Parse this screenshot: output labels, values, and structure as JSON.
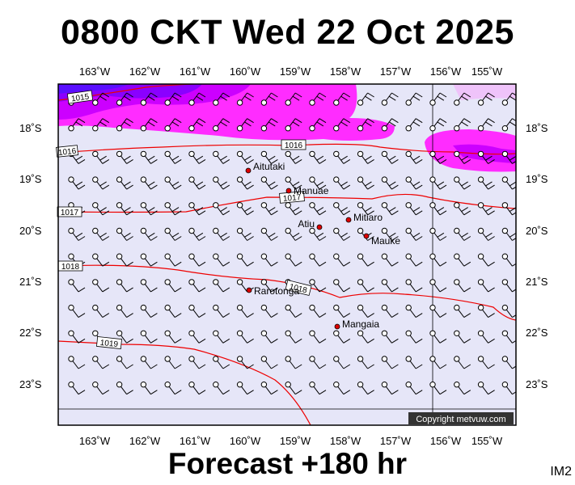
{
  "title": "0800 CKT Wed 22 Oct 2025",
  "footer": "Forecast +180 hr",
  "corner_tag": "IM2",
  "copyright": "Copyright metvuw.com",
  "longitude_labels": [
    "163˚W",
    "162˚W",
    "161˚W",
    "160˚W",
    "159˚W",
    "158˚W",
    "157˚W",
    "156˚W",
    "155˚W"
  ],
  "latitude_labels": [
    "18˚S",
    "19˚S",
    "20˚S",
    "21˚S",
    "22˚S",
    "23˚S"
  ],
  "isobar_labels": [
    "1015",
    "1016",
    "1016",
    "1017",
    "1017",
    "1018",
    "1018",
    "1019"
  ],
  "places": [
    {
      "name": "Aitutaki"
    },
    {
      "name": "Manuae"
    },
    {
      "name": "Atiu"
    },
    {
      "name": "Mitiaro"
    },
    {
      "name": "Mauke"
    },
    {
      "name": "Rarotonga"
    },
    {
      "name": "Mangaia"
    }
  ],
  "colors": {
    "background": "#e6e6f8",
    "rain_light": "#ff40ff",
    "rain_heavy": "#8c00ff",
    "isobar": "#ee0000",
    "island": "#dd0000"
  }
}
